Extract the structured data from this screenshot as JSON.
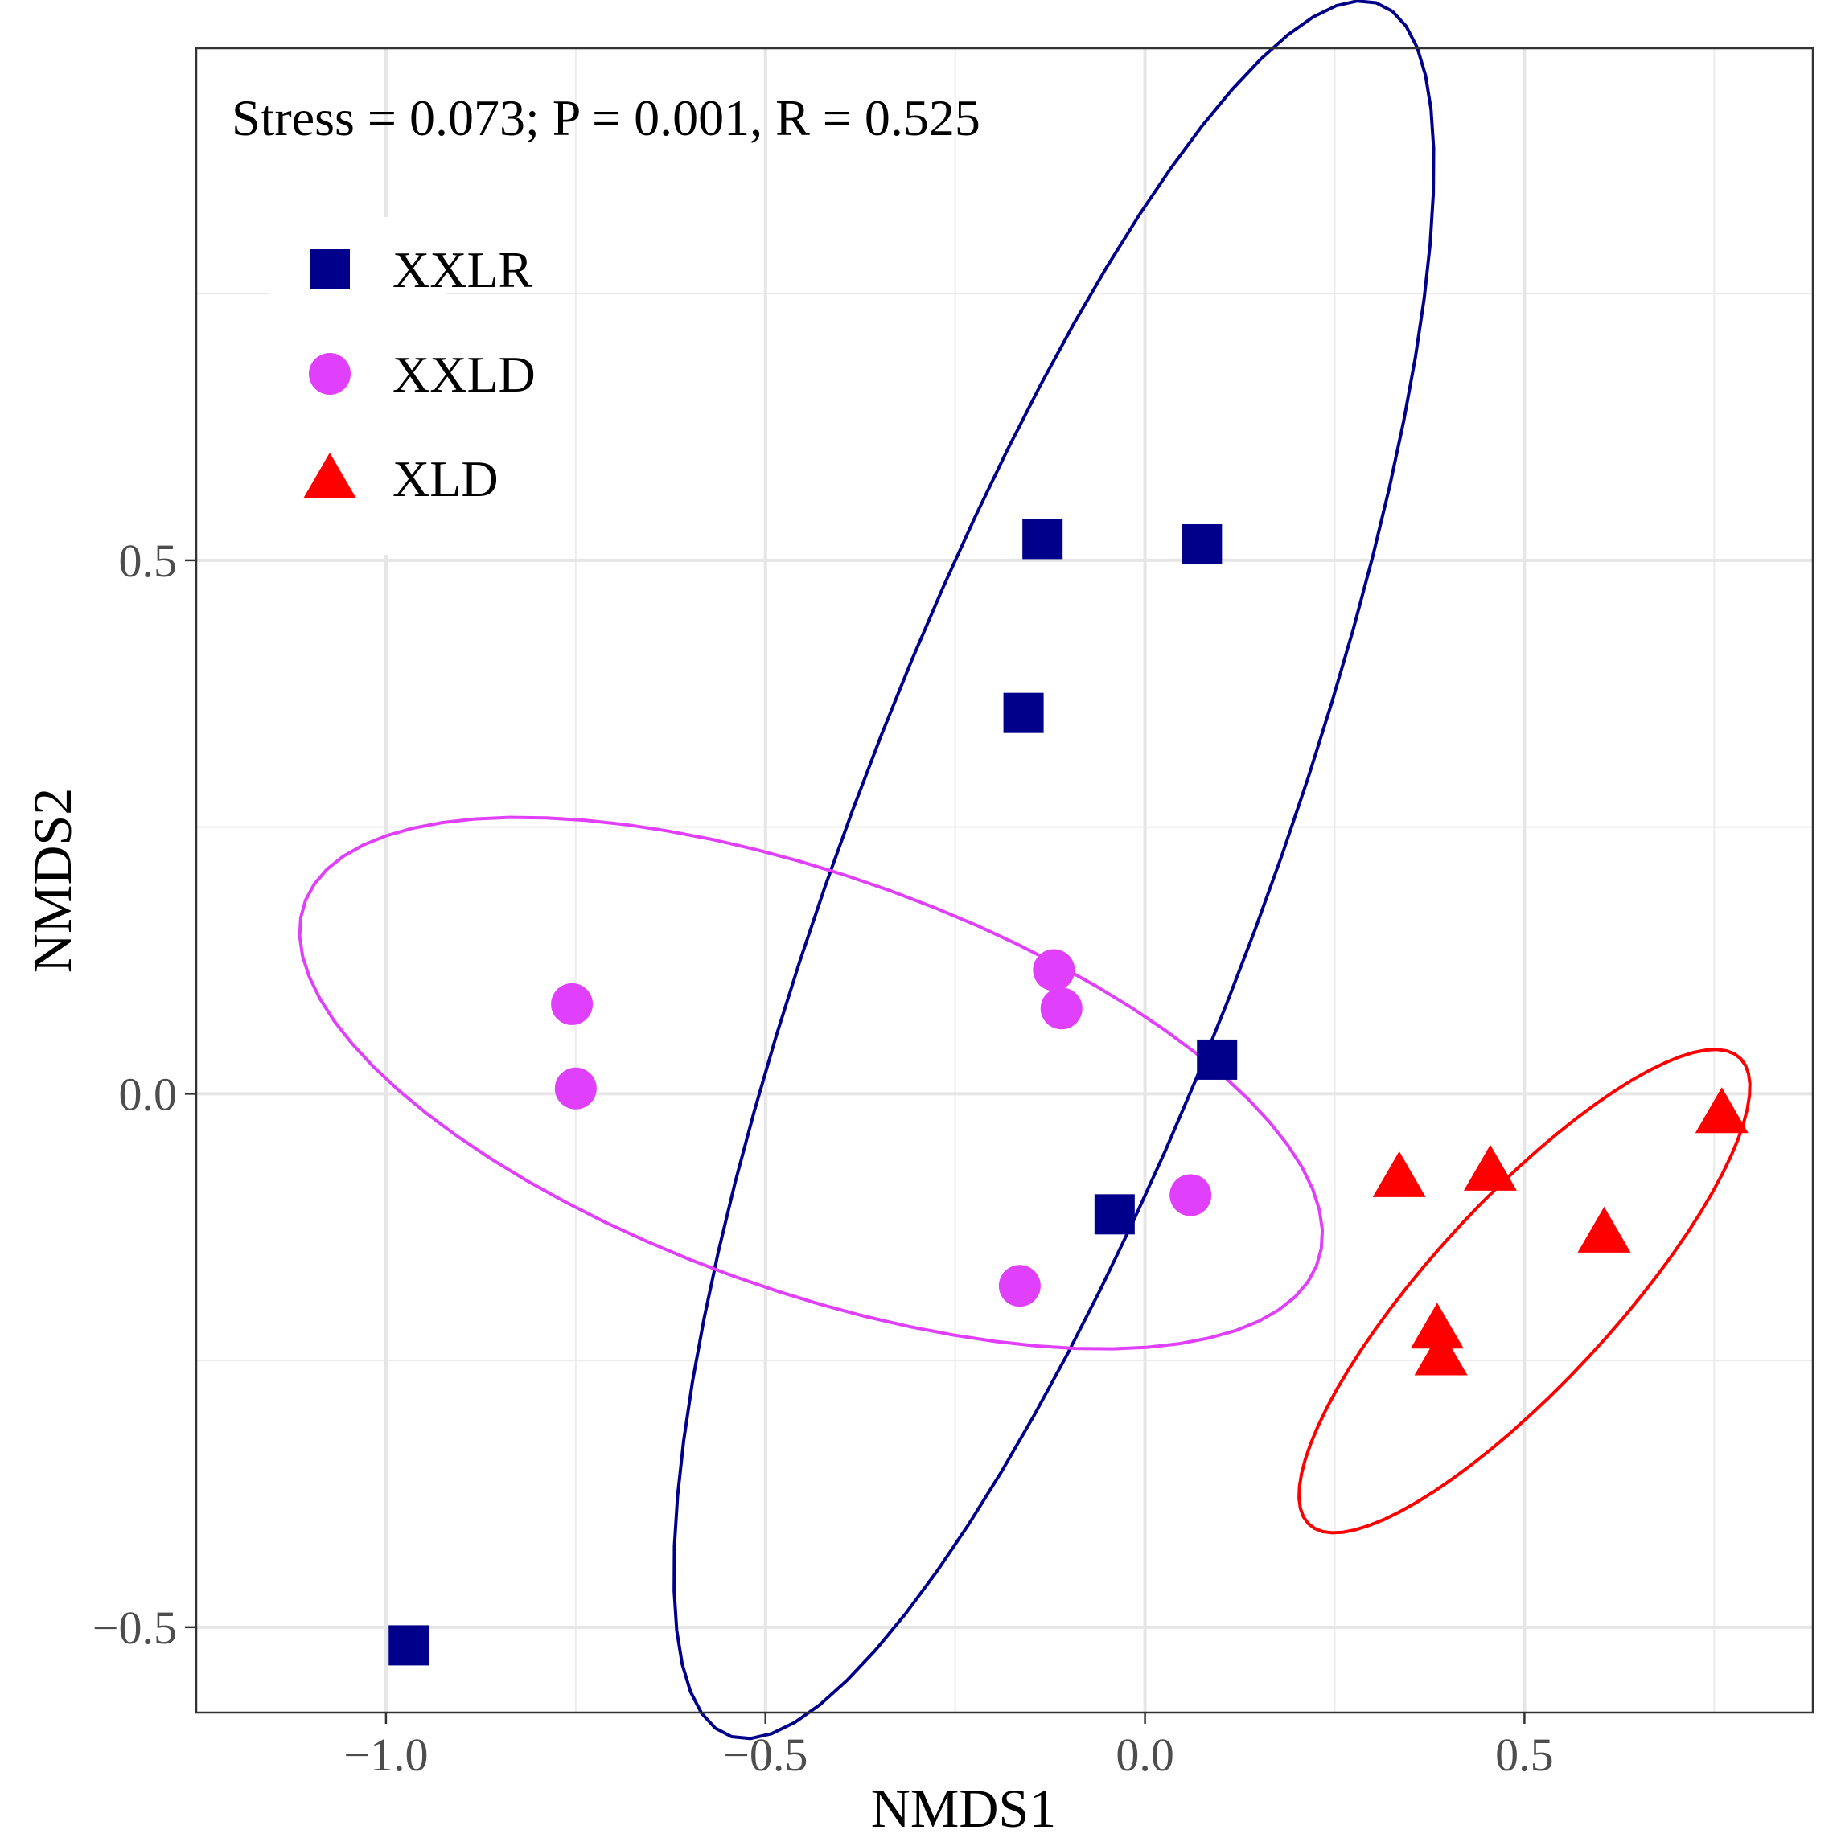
{
  "chart_data": {
    "type": "scatter",
    "title": "",
    "annotation": "Stress = 0.073; P = 0.001, R = 0.525",
    "xlabel": "NMDS1",
    "ylabel": "NMDS2",
    "xlim": [
      -1.25,
      0.88
    ],
    "ylim": [
      -0.58,
      0.98
    ],
    "x_ticks": [
      -1.0,
      -0.5,
      0.0,
      0.5
    ],
    "x_tick_labels": [
      "−1.0",
      "−0.5",
      "0.0",
      "0.5"
    ],
    "y_ticks": [
      -0.5,
      0.0,
      0.5
    ],
    "y_tick_labels": [
      "−0.5",
      "0.0",
      "0.5"
    ],
    "grid": true,
    "legend_position": "top-left",
    "series": [
      {
        "name": "XXLR",
        "color": "#00008B",
        "shape": "square",
        "points": [
          {
            "x": -0.135,
            "y": 0.52
          },
          {
            "x": 0.075,
            "y": 0.515
          },
          {
            "x": -0.16,
            "y": 0.357
          },
          {
            "x": 0.095,
            "y": 0.032
          },
          {
            "x": -0.04,
            "y": -0.113
          },
          {
            "x": -0.97,
            "y": -0.517
          }
        ],
        "ellipse": {
          "cx": -0.12,
          "cy": 0.21,
          "a": 0.92,
          "b": 0.26,
          "angle_deg": 61
        }
      },
      {
        "name": "XXLD",
        "color": "#E040FB",
        "shape": "circle",
        "points": [
          {
            "x": -0.755,
            "y": 0.084
          },
          {
            "x": -0.75,
            "y": 0.005
          },
          {
            "x": -0.12,
            "y": 0.116
          },
          {
            "x": -0.11,
            "y": 0.08
          },
          {
            "x": 0.06,
            "y": -0.095
          },
          {
            "x": -0.165,
            "y": -0.18
          }
        ],
        "ellipse": {
          "cx": -0.44,
          "cy": 0.01,
          "a": 0.69,
          "b": 0.2,
          "angle_deg": -13
        }
      },
      {
        "name": "XLD",
        "color": "#FF0000",
        "shape": "triangle",
        "points": [
          {
            "x": 0.76,
            "y": -0.018
          },
          {
            "x": 0.335,
            "y": -0.078
          },
          {
            "x": 0.455,
            "y": -0.072
          },
          {
            "x": 0.605,
            "y": -0.13
          },
          {
            "x": 0.385,
            "y": -0.22
          },
          {
            "x": 0.39,
            "y": -0.245
          }
        ],
        "ellipse": {
          "cx": 0.5,
          "cy": -0.185,
          "a": 0.36,
          "b": 0.1,
          "angle_deg": 36
        }
      }
    ]
  }
}
